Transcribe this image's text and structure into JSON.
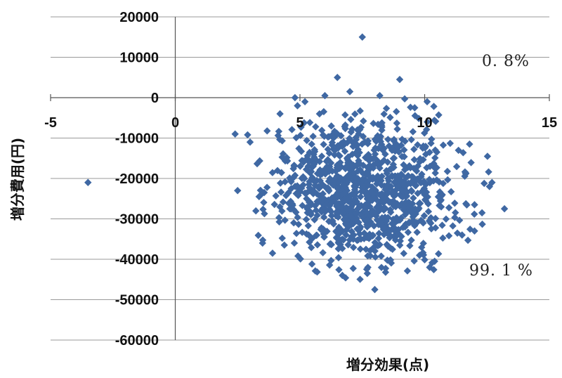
{
  "chart_data": {
    "type": "scatter",
    "title": "",
    "xlabel": "増分効果(点)",
    "ylabel": "増分費用(円)",
    "xlim": [
      -5,
      15
    ],
    "ylim": [
      -60000,
      20000
    ],
    "x_ticks": [
      "-5",
      "0",
      "5",
      "10",
      "15"
    ],
    "y_ticks": [
      "20000",
      "10000",
      "0",
      "-10000",
      "-20000",
      "-30000",
      "-40000",
      "-50000",
      "-60000"
    ],
    "grid": "horizontal",
    "marker": "diamond",
    "color": "#3f68a3",
    "annotations": [
      {
        "text": "0. 8%",
        "quadrant": "upper-right"
      },
      {
        "text": "99. 1 %",
        "quadrant": "lower-right"
      }
    ],
    "points": [
      [
        -3.5,
        -21000
      ],
      [
        7.5,
        15000
      ],
      [
        6.5,
        5000
      ],
      [
        9.0,
        4500
      ],
      [
        7.0,
        1500
      ],
      [
        4.8,
        0
      ],
      [
        6.0,
        500
      ],
      [
        8.2,
        500
      ],
      [
        9.2,
        -300
      ],
      [
        5.2,
        -1000
      ],
      [
        2.4,
        -9000
      ],
      [
        2.9,
        -9200
      ],
      [
        3.0,
        -11000
      ],
      [
        2.5,
        -23000
      ],
      [
        3.5,
        -36000
      ],
      [
        3.9,
        -38500
      ],
      [
        12.7,
        -21000
      ],
      [
        12.6,
        -22000
      ],
      [
        12.3,
        -28500
      ],
      [
        13.2,
        -27500
      ],
      [
        11.8,
        -11500
      ],
      [
        12.0,
        -26500
      ],
      [
        11.5,
        -34000
      ],
      [
        12.0,
        -33000
      ],
      [
        8.0,
        -47500
      ],
      [
        6.7,
        -44000
      ],
      [
        10.2,
        -42000
      ],
      [
        10.4,
        -40500
      ],
      [
        7.7,
        -43500
      ],
      [
        4.2,
        -4000
      ],
      [
        4.9,
        -2000
      ],
      [
        10.1,
        -1000
      ],
      [
        9.6,
        -2500
      ]
    ],
    "cloud": {
      "count": 1050,
      "x_mean": 7.5,
      "x_sd": 1.8,
      "y_mean": -23000,
      "y_sd": 8500
    }
  }
}
